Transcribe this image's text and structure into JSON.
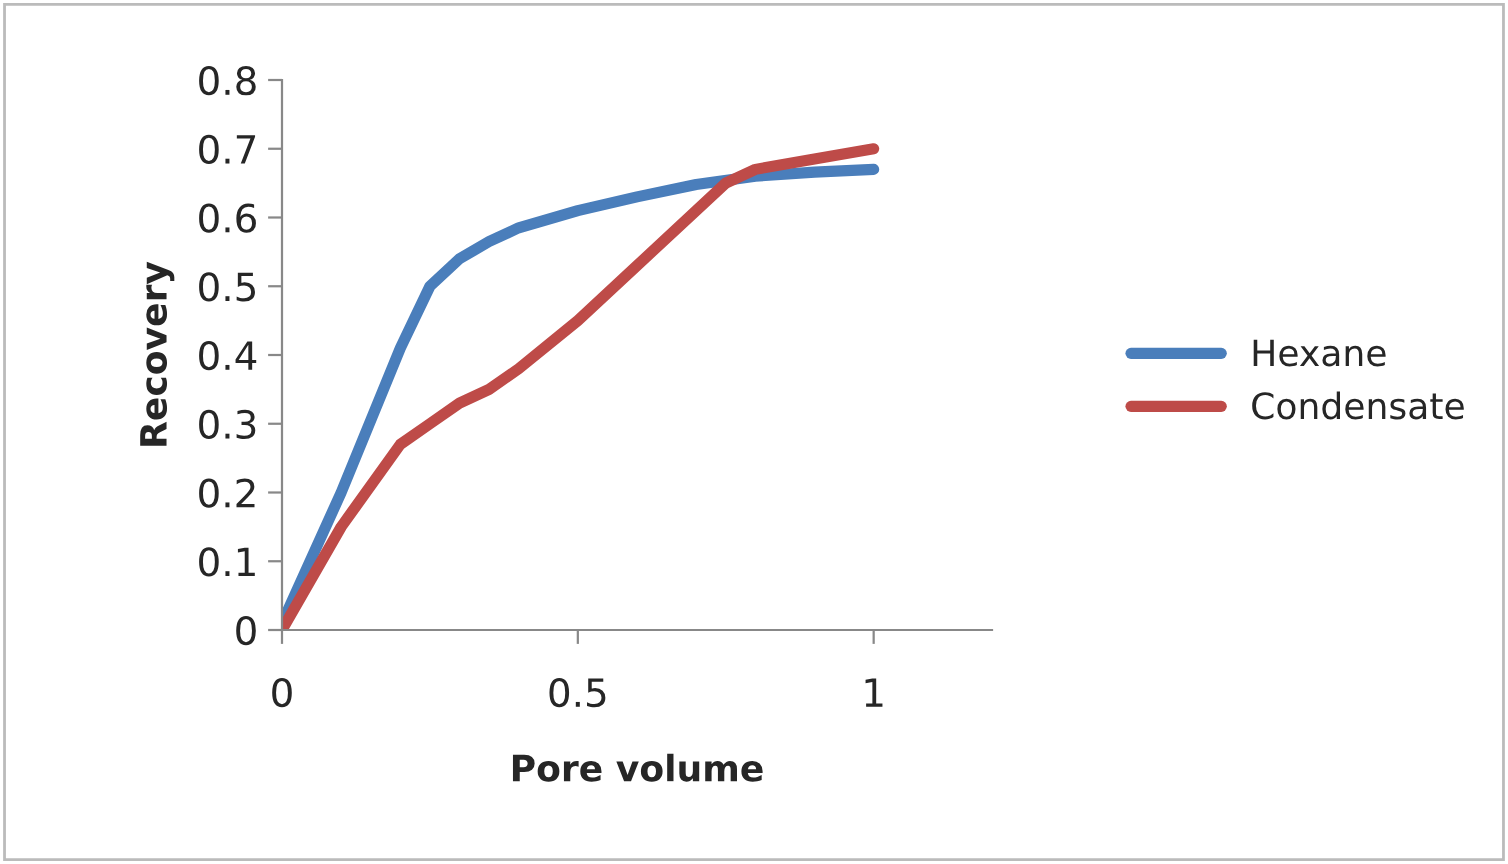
{
  "chart_data": {
    "type": "line",
    "xlabel": "Pore volume",
    "ylabel": "Recovery",
    "series": [
      {
        "name": "Hexane",
        "color": "#4a7ebb",
        "x": [
          0,
          0.1,
          0.2,
          0.25,
          0.3,
          0.35,
          0.4,
          0.5,
          0.6,
          0.7,
          0.8,
          0.9,
          1
        ],
        "values": [
          0.01,
          0.2,
          0.41,
          0.5,
          0.54,
          0.565,
          0.585,
          0.61,
          0.63,
          0.648,
          0.66,
          0.666,
          0.67
        ]
      },
      {
        "name": "Condensate",
        "color": "#be4b48",
        "x": [
          0,
          0.1,
          0.2,
          0.25,
          0.3,
          0.35,
          0.4,
          0.5,
          0.6,
          0.7,
          0.75,
          0.8,
          0.9,
          1
        ],
        "values": [
          0,
          0.15,
          0.27,
          0.3,
          0.33,
          0.35,
          0.38,
          0.45,
          0.53,
          0.61,
          0.65,
          0.67,
          0.685,
          0.7
        ]
      }
    ],
    "xlim": [
      0,
      1.2
    ],
    "xticks": [
      0,
      0.5,
      1
    ],
    "ylim": [
      0,
      0.8
    ],
    "yticks": [
      0,
      0.1,
      0.2,
      0.3,
      0.4,
      0.5,
      0.6,
      0.7,
      0.8
    ],
    "grid": false,
    "legend": "right",
    "marker": "none",
    "line_style": "solid"
  }
}
